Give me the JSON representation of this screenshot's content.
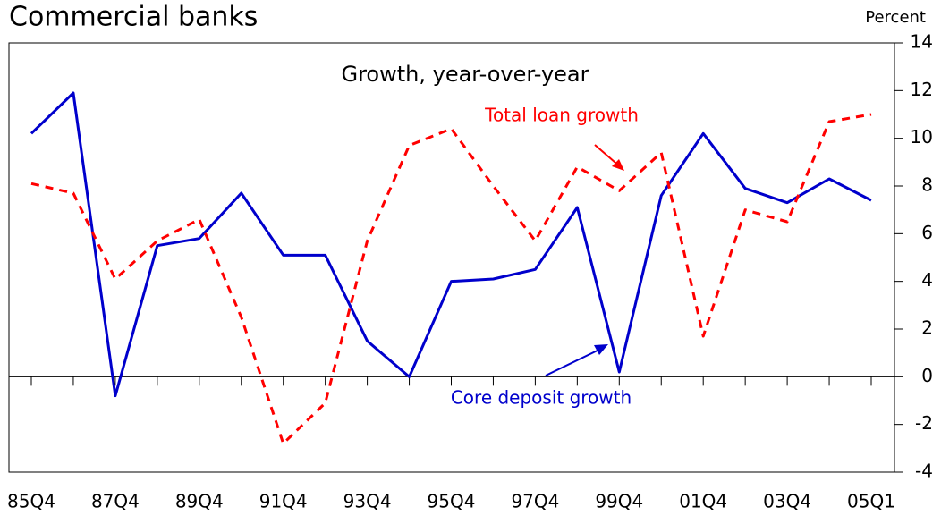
{
  "chart_data": {
    "type": "line",
    "title": "Commercial banks",
    "subtitle": "Growth, year-over-year",
    "y_axis_label": "Percent",
    "categories": [
      "85Q4",
      null,
      "87Q4",
      null,
      "89Q4",
      null,
      "91Q4",
      null,
      "93Q4",
      null,
      "95Q4",
      null,
      "97Q4",
      null,
      "99Q4",
      null,
      "01Q4",
      null,
      "03Q4",
      null,
      "05Q1"
    ],
    "series": [
      {
        "name": "Core deposit growth",
        "color": "#0000cc",
        "dash": false,
        "values": [
          10.2,
          11.9,
          -0.8,
          5.5,
          5.8,
          7.7,
          5.1,
          5.1,
          1.5,
          0,
          4.0,
          4.1,
          4.5,
          7.1,
          0.2,
          7.6,
          10.2,
          7.9,
          7.3,
          8.3,
          7.4
        ]
      },
      {
        "name": "Total loan growth",
        "color": "#ff0000",
        "dash": true,
        "values": [
          8.1,
          7.7,
          4.1,
          5.7,
          6.6,
          2.5,
          -2.8,
          -1.1,
          5.7,
          9.7,
          10.4,
          8.0,
          5.7,
          8.8,
          7.8,
          9.4,
          1.7,
          7.0,
          6.5,
          10.7,
          11.0
        ]
      }
    ],
    "ylim": [
      -4,
      14
    ],
    "yticks": [
      -4,
      -2,
      0,
      2,
      4,
      6,
      8,
      10,
      12,
      14
    ],
    "y_axis_side": "right"
  }
}
